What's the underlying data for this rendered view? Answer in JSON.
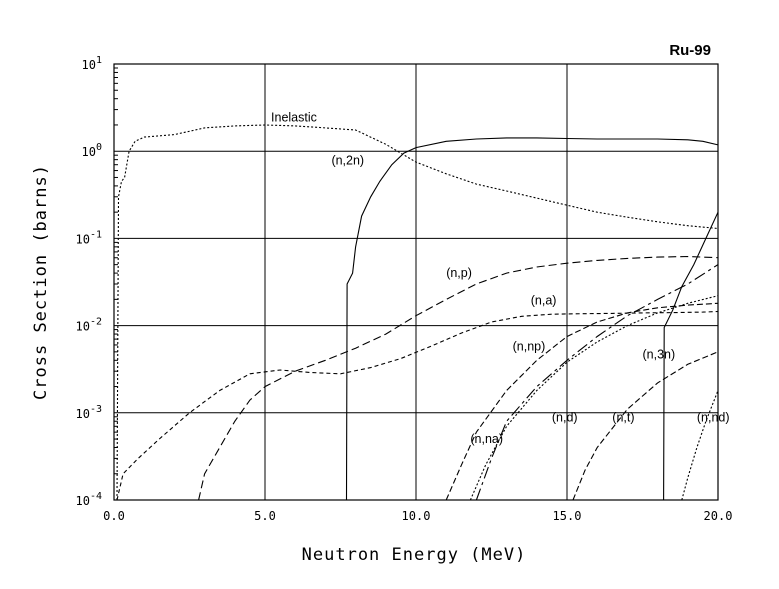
{
  "chart_data": {
    "type": "line",
    "title": "Ru-99",
    "xlabel": "Neutron Energy (MeV)",
    "ylabel": "Cross Section (barns)",
    "xlim": [
      0,
      20
    ],
    "ylim": [
      0.0001,
      10
    ],
    "yscale": "log",
    "grid": true,
    "x_ticks": [
      0,
      5,
      10,
      15,
      20
    ],
    "x_tick_labels": [
      "0.0",
      "5.0",
      "10.0",
      "15.0",
      "20.0"
    ],
    "y_ticks": [
      {
        "value": 10,
        "base": "10",
        "exp": "1"
      },
      {
        "value": 1,
        "base": "10",
        "exp": "0"
      },
      {
        "value": 0.1,
        "base": "10",
        "exp": "-1"
      },
      {
        "value": 0.01,
        "base": "10",
        "exp": "-2"
      },
      {
        "value": 0.001,
        "base": "10",
        "exp": "-3"
      },
      {
        "value": 0.0001,
        "base": "10",
        "exp": "-4"
      }
    ],
    "series": [
      {
        "name": "Inelastic",
        "dash": "2,2",
        "label_at": {
          "x": 5.2,
          "y": 2.2
        },
        "points": [
          [
            0.1,
            0.0001
          ],
          [
            0.15,
            0.3
          ],
          [
            0.25,
            0.45
          ],
          [
            0.35,
            0.5
          ],
          [
            0.5,
            1.0
          ],
          [
            0.7,
            1.3
          ],
          [
            1.0,
            1.45
          ],
          [
            2.0,
            1.55
          ],
          [
            3.0,
            1.85
          ],
          [
            4.0,
            1.95
          ],
          [
            5.0,
            2.0
          ],
          [
            6.0,
            1.95
          ],
          [
            7.0,
            1.85
          ],
          [
            8.0,
            1.75
          ],
          [
            9.0,
            1.2
          ],
          [
            10.0,
            0.75
          ],
          [
            11.0,
            0.55
          ],
          [
            12.0,
            0.42
          ],
          [
            13.0,
            0.35
          ],
          [
            14.0,
            0.29
          ],
          [
            15.0,
            0.24
          ],
          [
            16.0,
            0.2
          ],
          [
            17.0,
            0.175
          ],
          [
            18.0,
            0.155
          ],
          [
            19.0,
            0.14
          ],
          [
            20.0,
            0.13
          ]
        ]
      },
      {
        "name": "(n,2n)",
        "dash": "",
        "label_at": {
          "x": 7.2,
          "y": 0.7
        },
        "points": [
          [
            7.7,
            0.0001
          ],
          [
            7.72,
            0.03
          ],
          [
            7.9,
            0.04
          ],
          [
            8.0,
            0.08
          ],
          [
            8.2,
            0.18
          ],
          [
            8.5,
            0.3
          ],
          [
            8.8,
            0.45
          ],
          [
            9.2,
            0.7
          ],
          [
            9.6,
            0.95
          ],
          [
            10.0,
            1.1
          ],
          [
            11.0,
            1.3
          ],
          [
            12.0,
            1.38
          ],
          [
            13.0,
            1.42
          ],
          [
            14.0,
            1.42
          ],
          [
            15.0,
            1.4
          ],
          [
            16.0,
            1.38
          ],
          [
            17.0,
            1.38
          ],
          [
            18.0,
            1.38
          ],
          [
            19.0,
            1.35
          ],
          [
            19.5,
            1.3
          ],
          [
            20.0,
            1.18
          ]
        ]
      },
      {
        "name": "(n,p)",
        "dash": "8,4",
        "label_at": {
          "x": 11.0,
          "y": 0.036
        },
        "points": [
          [
            2.8,
            0.0001
          ],
          [
            3.0,
            0.0002
          ],
          [
            3.5,
            0.0004
          ],
          [
            4.0,
            0.0008
          ],
          [
            4.5,
            0.0014
          ],
          [
            5.0,
            0.002
          ],
          [
            6.0,
            0.003
          ],
          [
            7.0,
            0.004
          ],
          [
            8.0,
            0.0055
          ],
          [
            9.0,
            0.008
          ],
          [
            10.0,
            0.013
          ],
          [
            11.0,
            0.02
          ],
          [
            12.0,
            0.03
          ],
          [
            13.0,
            0.04
          ],
          [
            14.0,
            0.047
          ],
          [
            15.0,
            0.052
          ],
          [
            16.0,
            0.056
          ],
          [
            17.0,
            0.059
          ],
          [
            18.0,
            0.061
          ],
          [
            19.0,
            0.062
          ],
          [
            20.0,
            0.06
          ]
        ]
      },
      {
        "name": "(n,a)",
        "dash": "4,3",
        "label_at": {
          "x": 13.8,
          "y": 0.0175
        },
        "points": [
          [
            0.1,
            0.0001
          ],
          [
            0.3,
            0.0002
          ],
          [
            0.8,
            0.0003
          ],
          [
            1.5,
            0.0005
          ],
          [
            2.5,
            0.001
          ],
          [
            3.5,
            0.0018
          ],
          [
            4.5,
            0.0028
          ],
          [
            5.5,
            0.0031
          ],
          [
            6.5,
            0.0029
          ],
          [
            7.5,
            0.0028
          ],
          [
            8.5,
            0.0033
          ],
          [
            9.5,
            0.0042
          ],
          [
            10.5,
            0.0058
          ],
          [
            11.5,
            0.0082
          ],
          [
            12.5,
            0.011
          ],
          [
            13.5,
            0.0128
          ],
          [
            14.5,
            0.0135
          ],
          [
            15.5,
            0.0137
          ],
          [
            16.5,
            0.0138
          ],
          [
            17.5,
            0.014
          ],
          [
            18.5,
            0.0141
          ],
          [
            19.5,
            0.0143
          ],
          [
            20.0,
            0.0145
          ]
        ]
      },
      {
        "name": "(n,np)",
        "dash": "12,4,3,4",
        "label_at": {
          "x": 13.2,
          "y": 0.0052
        },
        "points": [
          [
            12.0,
            0.0001
          ],
          [
            12.5,
            0.0003
          ],
          [
            13.0,
            0.0008
          ],
          [
            14.0,
            0.002
          ],
          [
            15.0,
            0.004
          ],
          [
            16.0,
            0.0075
          ],
          [
            17.0,
            0.013
          ],
          [
            18.0,
            0.02
          ],
          [
            19.0,
            0.03
          ],
          [
            20.0,
            0.05
          ]
        ]
      },
      {
        "name": "(n,d)",
        "dash": "2,2",
        "label_at": {
          "x": 14.5,
          "y": 0.0008
        },
        "points": [
          [
            11.8,
            0.0001
          ],
          [
            12.3,
            0.00025
          ],
          [
            13.0,
            0.0007
          ],
          [
            14.0,
            0.0018
          ],
          [
            15.0,
            0.0038
          ],
          [
            16.0,
            0.0065
          ],
          [
            17.0,
            0.01
          ],
          [
            18.0,
            0.014
          ],
          [
            19.0,
            0.018
          ],
          [
            20.0,
            0.022
          ]
        ]
      },
      {
        "name": "(n,na)",
        "dash": "6,3",
        "label_at": {
          "x": 11.8,
          "y": 0.00045
        },
        "points": [
          [
            11.0,
            0.0001
          ],
          [
            11.5,
            0.00025
          ],
          [
            12.0,
            0.0006
          ],
          [
            13.0,
            0.0018
          ],
          [
            14.0,
            0.004
          ],
          [
            15.0,
            0.0075
          ],
          [
            16.0,
            0.011
          ],
          [
            17.0,
            0.014
          ],
          [
            18.0,
            0.016
          ],
          [
            19.0,
            0.0172
          ],
          [
            20.0,
            0.018
          ]
        ]
      },
      {
        "name": "(n,3n)",
        "dash": "",
        "label_at": {
          "x": 17.5,
          "y": 0.0042
        },
        "points": [
          [
            18.2,
            0.0001
          ],
          [
            18.22,
            0.0095
          ],
          [
            18.5,
            0.015
          ],
          [
            18.8,
            0.028
          ],
          [
            19.2,
            0.05
          ],
          [
            19.6,
            0.1
          ],
          [
            20.0,
            0.2
          ]
        ]
      },
      {
        "name": "(n,t)",
        "dash": "6,3",
        "label_at": {
          "x": 16.5,
          "y": 0.0008
        },
        "points": [
          [
            15.2,
            0.0001
          ],
          [
            15.6,
            0.00022
          ],
          [
            16.0,
            0.0004
          ],
          [
            17.0,
            0.0011
          ],
          [
            18.0,
            0.0022
          ],
          [
            19.0,
            0.0036
          ],
          [
            20.0,
            0.005
          ]
        ]
      },
      {
        "name": "(n,nd)",
        "dash": "2,2",
        "label_at": {
          "x": 19.3,
          "y": 0.0008
        },
        "points": [
          [
            18.8,
            0.0001
          ],
          [
            19.0,
            0.00018
          ],
          [
            19.3,
            0.0004
          ],
          [
            19.6,
            0.0008
          ],
          [
            20.0,
            0.0018
          ]
        ]
      }
    ]
  }
}
